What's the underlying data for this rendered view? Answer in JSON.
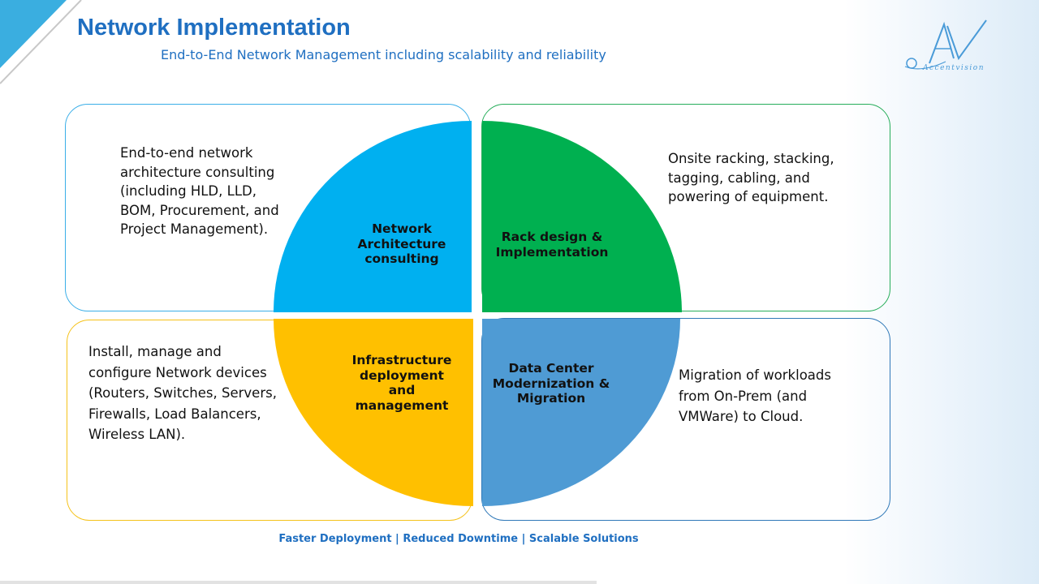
{
  "header": {
    "title": "Network Implementation",
    "subtitle": "End-to-End Network Management including scalability and reliability"
  },
  "logo": {
    "monogram": "AV",
    "name": "Accentvision"
  },
  "quadrants": [
    {
      "label": "Network Architecture consulting",
      "description": "End-to-end network architecture consulting (including HLD, LLD, BOM, Procurement, and Project Management).",
      "color": "#00b0f0"
    },
    {
      "label": "Rack design & Implementation",
      "description": "Onsite racking, stacking, tagging, cabling, and powering of equipment.",
      "color": "#00b050"
    },
    {
      "label": "Infrastructure deployment and management",
      "description": "Install, manage and configure Network devices (Routers, Switches, Servers, Firewalls, Load Balancers, Wireless LAN).",
      "color": "#ffc000"
    },
    {
      "label": "Data Center Modernization & Migration",
      "description": "Migration of workloads from On-Prem (and VMWare) to Cloud.",
      "color": "#4f9bd4"
    }
  ],
  "footer": {
    "tagline": "Faster Deployment | Reduced Downtime | Scalable Solutions"
  },
  "colors": {
    "accent": "#1f6fc1",
    "corner": "#3aaee0"
  }
}
